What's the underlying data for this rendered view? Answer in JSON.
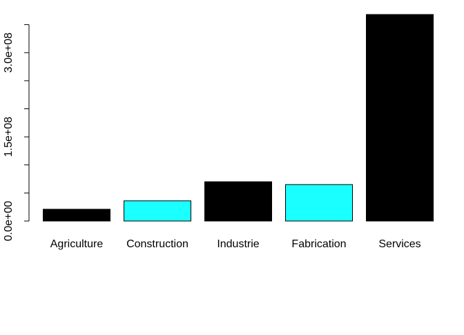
{
  "chart_data": {
    "type": "bar",
    "title": "",
    "xlabel": "",
    "ylabel": "",
    "categories": [
      "Agriculture",
      "Construction",
      "Industrie",
      "Fabrication",
      "Services"
    ],
    "values": [
      21000000,
      36000000,
      70000000,
      65000000,
      368000000
    ],
    "colors": [
      "#000000",
      "#1affff",
      "#000000",
      "#1affff",
      "#000000"
    ],
    "ylim": [
      0,
      370000000
    ],
    "y_ticks": [
      0,
      50000000,
      100000000,
      150000000,
      200000000,
      250000000,
      300000000,
      350000000
    ],
    "y_tick_labels": [
      {
        "value": 0,
        "label": "0.0e+00"
      },
      {
        "value": 150000000,
        "label": "1.5e+08"
      },
      {
        "value": 300000000,
        "label": "3.0e+08"
      }
    ],
    "grid": false,
    "legend": "none"
  }
}
